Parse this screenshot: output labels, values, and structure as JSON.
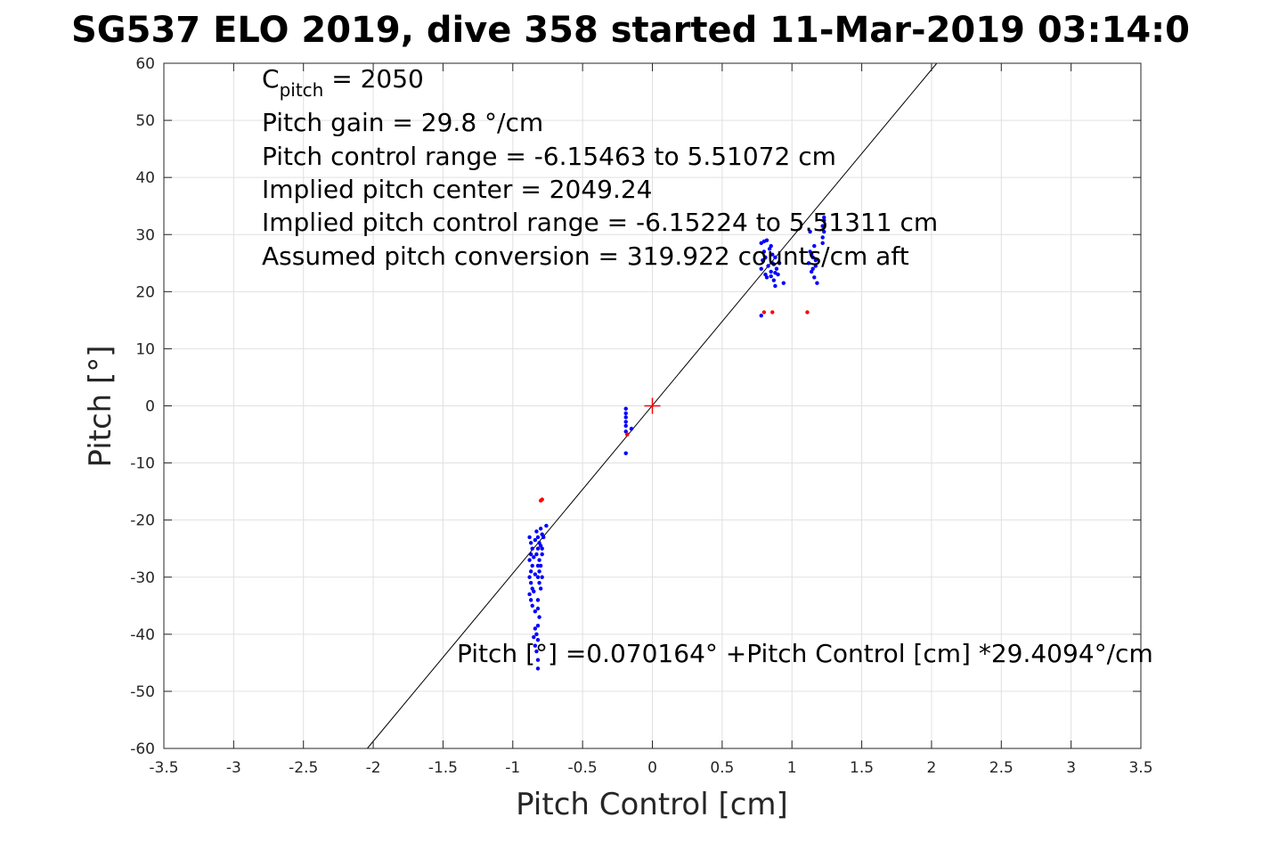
{
  "chart_data": {
    "type": "scatter",
    "title": "SG537 ELO 2019, dive 358 started 11-Mar-2019 03:14:0",
    "xlabel": "Pitch Control [cm]",
    "ylabel": "Pitch [°]",
    "xlim": [
      -3.5,
      3.5
    ],
    "ylim": [
      -60,
      60
    ],
    "xticks": [
      -3.5,
      -3,
      -2.5,
      -2,
      -1.5,
      -1,
      -0.5,
      0,
      0.5,
      1,
      1.5,
      2,
      2.5,
      3,
      3.5
    ],
    "yticks": [
      -60,
      -50,
      -40,
      -30,
      -20,
      -10,
      0,
      10,
      20,
      30,
      40,
      50,
      60
    ],
    "xtick_labels": [
      "-3.5",
      "-3",
      "-2.5",
      "-2",
      "-1.5",
      "-1",
      "-0.5",
      "0",
      "0.5",
      "1",
      "1.5",
      "2",
      "2.5",
      "3",
      "3.5"
    ],
    "ytick_labels": [
      "-60",
      "-50",
      "-40",
      "-30",
      "-20",
      "-10",
      "0",
      "10",
      "20",
      "30",
      "40",
      "50",
      "60"
    ],
    "grid": true,
    "colors": {
      "good": "#0000ff",
      "flagged": "#ff0000",
      "fit": "#000000",
      "grid": "#e0e0e0"
    },
    "fit_line": {
      "intercept": 0.070164,
      "slope": 29.4094
    },
    "center_marker": {
      "x": 0,
      "y": 0
    },
    "series": [
      {
        "values": [
          [
            -0.88,
            -23
          ],
          [
            -0.87,
            -24
          ],
          [
            -0.86,
            -25
          ],
          [
            -0.87,
            -26
          ],
          [
            -0.88,
            -27
          ],
          [
            -0.86,
            -28
          ],
          [
            -0.87,
            -29
          ],
          [
            -0.88,
            -30
          ],
          [
            -0.87,
            -31
          ],
          [
            -0.86,
            -32
          ],
          [
            -0.88,
            -33
          ],
          [
            -0.87,
            -34
          ],
          [
            -0.86,
            -35
          ],
          [
            -0.84,
            -23.5
          ],
          [
            -0.85,
            -26.5
          ],
          [
            -0.84,
            -29.5
          ],
          [
            -0.85,
            -32.5
          ],
          [
            -0.84,
            -36
          ],
          [
            -0.83,
            -22
          ],
          [
            -0.82,
            -23
          ],
          [
            -0.81,
            -24
          ],
          [
            -0.82,
            -25
          ],
          [
            -0.83,
            -26
          ],
          [
            -0.81,
            -27
          ],
          [
            -0.82,
            -28
          ],
          [
            -0.81,
            -29
          ],
          [
            -0.82,
            -30
          ],
          [
            -0.81,
            -31
          ],
          [
            -0.8,
            -32
          ],
          [
            -0.82,
            -34
          ],
          [
            -0.82,
            -35.5
          ],
          [
            -0.81,
            -37
          ],
          [
            -0.82,
            -38.5
          ],
          [
            -0.83,
            -40
          ],
          [
            -0.82,
            -41
          ],
          [
            -0.84,
            -39
          ],
          [
            -0.85,
            -40.5
          ],
          [
            -0.84,
            -42
          ],
          [
            -0.83,
            -43
          ],
          [
            -0.82,
            -44.5
          ],
          [
            -0.82,
            -46
          ],
          [
            -0.8,
            -21.5
          ],
          [
            -0.79,
            -22.5
          ],
          [
            -0.8,
            -24.5
          ],
          [
            -0.79,
            -26
          ],
          [
            -0.8,
            -28
          ],
          [
            -0.79,
            -30
          ],
          [
            -0.76,
            -21
          ],
          [
            -0.78,
            -23
          ],
          [
            -0.79,
            -25
          ],
          [
            -0.19,
            -0.5
          ],
          [
            -0.19,
            -1.3
          ],
          [
            -0.19,
            -2
          ],
          [
            -0.19,
            -2.8
          ],
          [
            -0.19,
            -3.5
          ],
          [
            -0.19,
            -4.5
          ],
          [
            -0.18,
            -5
          ],
          [
            -0.15,
            -4
          ],
          [
            -0.19,
            -8.3
          ],
          [
            0.78,
            24
          ],
          [
            0.79,
            25.5
          ],
          [
            0.8,
            27
          ],
          [
            0.78,
            28.5
          ],
          [
            0.81,
            23
          ],
          [
            0.82,
            22.5
          ],
          [
            0.81,
            26
          ],
          [
            0.83,
            24.5
          ],
          [
            0.84,
            27.5
          ],
          [
            0.85,
            23.5
          ],
          [
            0.86,
            25
          ],
          [
            0.87,
            22
          ],
          [
            0.86,
            26.5
          ],
          [
            0.85,
            28
          ],
          [
            0.88,
            21
          ],
          [
            0.89,
            24
          ],
          [
            0.88,
            26
          ],
          [
            0.9,
            23
          ],
          [
            0.94,
            21.5
          ],
          [
            0.8,
            28.8
          ],
          [
            0.82,
            29
          ],
          [
            0.85,
            22.7
          ],
          [
            0.87,
            24.8
          ],
          [
            0.88,
            23.3
          ],
          [
            0.91,
            25
          ],
          [
            0.78,
            15.8
          ],
          [
            1.12,
            25
          ],
          [
            1.13,
            27
          ],
          [
            1.14,
            23.5
          ],
          [
            1.15,
            26
          ],
          [
            1.16,
            28
          ],
          [
            1.17,
            24.5
          ],
          [
            1.16,
            22.5
          ],
          [
            1.18,
            21.5
          ],
          [
            1.17,
            25.5
          ],
          [
            1.15,
            24
          ],
          [
            1.14,
            26.5
          ],
          [
            1.13,
            30.5
          ],
          [
            1.22,
            29.5
          ],
          [
            1.23,
            30.5
          ],
          [
            1.22,
            31.5
          ],
          [
            1.23,
            32.5
          ],
          [
            1.22,
            28.5
          ],
          [
            1.23,
            33
          ]
        ]
      },
      {
        "values": [
          [
            -0.79,
            -16.4
          ],
          [
            -0.8,
            -16.6
          ],
          [
            -0.18,
            -5
          ],
          [
            0.8,
            16.4
          ],
          [
            0.86,
            16.4
          ],
          [
            1.11,
            16.4
          ]
        ]
      }
    ]
  },
  "annotations": {
    "c_pitch_base": "C",
    "c_pitch_sub": "pitch",
    "c_pitch_rest": " = 2050",
    "pitch_gain": "Pitch gain = 29.8 °/cm",
    "pitch_control_range": "Pitch control range = -6.15463 to 5.51072 cm",
    "implied_center": "Implied pitch center = 2049.24",
    "implied_range": "Implied pitch control range = -6.15224 to 5.51311 cm",
    "assumed_conversion": "Assumed pitch conversion = 319.922 counts/cm aft",
    "fit_equation": "Pitch [°] =0.070164° +Pitch Control [cm] *29.4094°/cm"
  }
}
